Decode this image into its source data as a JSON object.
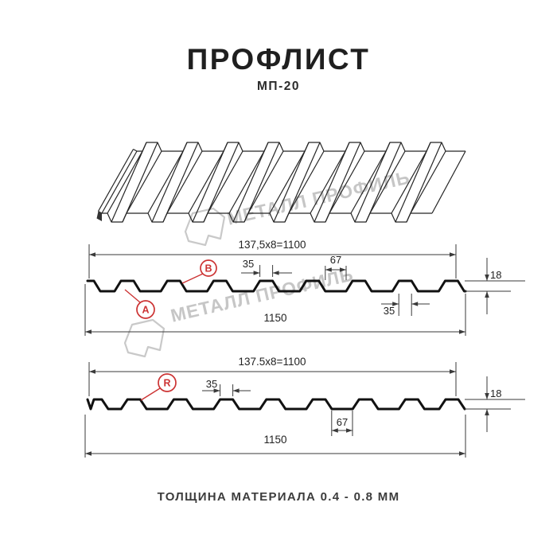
{
  "header": {
    "title": "ПРОФЛИСТ",
    "subtitle": "МП-20"
  },
  "watermark": {
    "brand": "МЕТАЛЛ ПРОФИЛЬ"
  },
  "profile_top": {
    "working_width": "137,5x8=1100",
    "overall_width": "1150",
    "rib_top_width": "35",
    "groove_width": "67",
    "rib_base_width": "35",
    "height": "18",
    "label_a": "A",
    "label_b": "B"
  },
  "profile_bottom": {
    "working_width": "137.5x8=1100",
    "overall_width": "1150",
    "rib_top_width": "35",
    "groove_width": "67",
    "height": "18",
    "label_r": "R"
  },
  "footer": {
    "thickness_note": "ТОЛЩИНА МАТЕРИАЛА 0.4 - 0.8 ММ"
  },
  "colors": {
    "accent_red": "#cc3333",
    "line_black": "#111111",
    "dim_gray": "#3a3a3a",
    "watermark_gray": "#c6c6c6",
    "background": "#ffffff"
  }
}
